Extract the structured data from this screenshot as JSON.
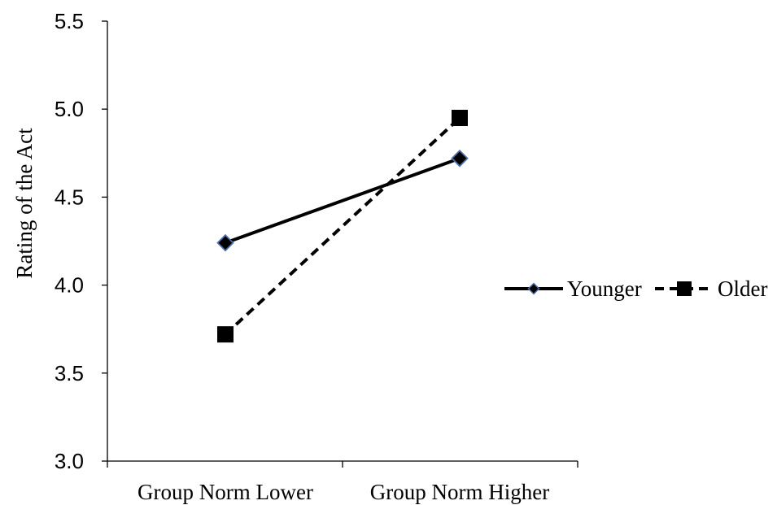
{
  "chart_data": {
    "type": "line",
    "title": "",
    "xlabel": "",
    "ylabel": "Rating of the Act",
    "categories": [
      "Group Norm Lower",
      "Group Norm Higher"
    ],
    "ylim": [
      3.0,
      5.5
    ],
    "yticks": [
      "3.0",
      "3.5",
      "4.0",
      "4.5",
      "5.0",
      "5.5"
    ],
    "grid": false,
    "legend_position": "right",
    "series": [
      {
        "name": "Younger",
        "values": [
          4.24,
          4.72
        ],
        "line_style": "solid",
        "marker": "diamond",
        "marker_fill": "#000000",
        "marker_edge": "#4f6fa8",
        "color": "#000000"
      },
      {
        "name": "Older",
        "values": [
          3.72,
          4.95
        ],
        "line_style": "dashed",
        "marker": "square",
        "marker_fill": "#000000",
        "marker_edge": "#000000",
        "color": "#000000"
      }
    ]
  }
}
